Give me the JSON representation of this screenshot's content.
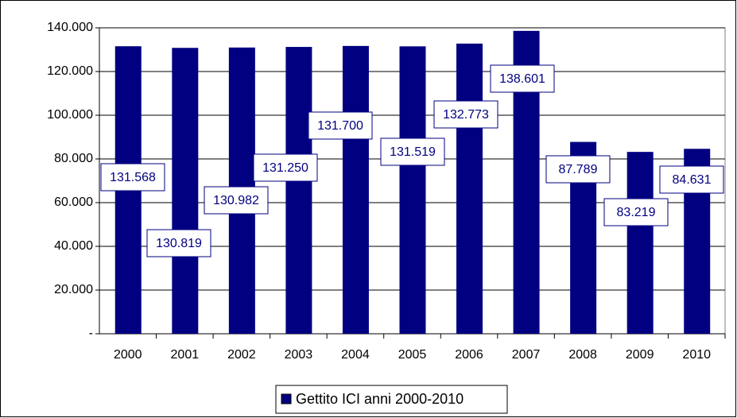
{
  "chart_data": {
    "type": "bar",
    "categories": [
      "2000",
      "2001",
      "2002",
      "2003",
      "2004",
      "2005",
      "2006",
      "2007",
      "2008",
      "2009",
      "2010"
    ],
    "series": [
      {
        "name": "Gettito ICI anni 2000-2010",
        "color": "#000080",
        "values": [
          131568,
          130819,
          130982,
          131250,
          131700,
          131519,
          132773,
          138601,
          87789,
          83219,
          84631
        ],
        "value_labels": [
          "131.568",
          "130.819",
          "130.982",
          "131.250",
          "131.700",
          "131.519",
          "132.773",
          "138.601",
          "87.789",
          "83.219",
          "84.631"
        ]
      }
    ],
    "ylim": [
      0,
      140000
    ],
    "yticks": [
      {
        "value": 0,
        "label": "-"
      },
      {
        "value": 20000,
        "label": "20.000"
      },
      {
        "value": 40000,
        "label": "40.000"
      },
      {
        "value": 60000,
        "label": "60.000"
      },
      {
        "value": 80000,
        "label": "80.000"
      },
      {
        "value": 100000,
        "label": "100.000"
      },
      {
        "value": 120000,
        "label": "120.000"
      },
      {
        "value": 140000,
        "label": "140.000"
      }
    ],
    "grid": true,
    "legend": "bottom"
  }
}
